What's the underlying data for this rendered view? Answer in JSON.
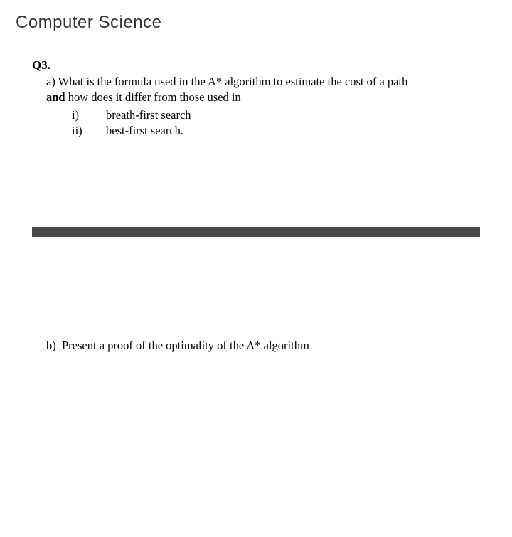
{
  "header": {
    "title": "Computer Science"
  },
  "question": {
    "number": "Q3.",
    "part_a": {
      "label": "a)",
      "text_line1": "What is the formula used in the A* algorithm to estimate the cost of a path",
      "bold_word": "and",
      "text_line2": " how does it differ from those used in",
      "sub_items": [
        {
          "label": "i)",
          "text": "breath-first search"
        },
        {
          "label": "ii)",
          "text": "best-first search."
        }
      ]
    },
    "part_b": {
      "label": "b)",
      "text": "Present a proof of the optimality of the A* algorithm"
    }
  },
  "styling": {
    "background_color": "#ffffff",
    "text_color": "#000000",
    "header_color": "#333333",
    "divider_color": "#4a4a4a",
    "header_fontsize": 24,
    "body_fontsize": 16.5,
    "divider_height": 14
  }
}
